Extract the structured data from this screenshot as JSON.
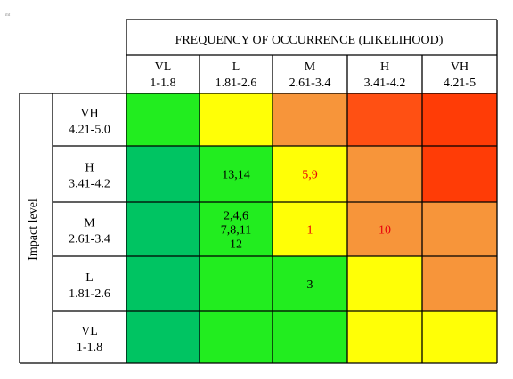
{
  "chart_data": {
    "type": "heatmap",
    "title": "FREQUENCY OF OCCURRENCE (LIKELIHOOD)",
    "ylabel": "Impact level",
    "columns": [
      {
        "code": "VL",
        "range": "1-1.8"
      },
      {
        "code": "L",
        "range": "1.81-2.6"
      },
      {
        "code": "M",
        "range": "2.61-3.4"
      },
      {
        "code": "H",
        "range": "3.41-4.2"
      },
      {
        "code": "VH",
        "range": "4.21-5"
      }
    ],
    "rows": [
      {
        "code": "VH",
        "range": "4.21-5.0"
      },
      {
        "code": "H",
        "range": "3.41-4.2"
      },
      {
        "code": "M",
        "range": "2.61-3.4"
      },
      {
        "code": "L",
        "range": "1.81-2.6"
      },
      {
        "code": "VL",
        "range": "1-1.8"
      }
    ],
    "colors": {
      "darkgreen": "#00c462",
      "green": "#22ed1f",
      "yellow": "#ffff06",
      "orange": "#f7953a",
      "redorange": "#ff5013",
      "red": "#ff3c06"
    },
    "cells": [
      [
        {
          "color": "green",
          "lines": []
        },
        {
          "color": "yellow",
          "lines": []
        },
        {
          "color": "orange",
          "lines": []
        },
        {
          "color": "redorange",
          "lines": []
        },
        {
          "color": "red",
          "lines": []
        }
      ],
      [
        {
          "color": "darkgreen",
          "lines": []
        },
        {
          "color": "green",
          "lines": [
            "13,14"
          ],
          "text_color": "black"
        },
        {
          "color": "yellow",
          "lines": [
            "5,9"
          ],
          "text_color": "red"
        },
        {
          "color": "orange",
          "lines": []
        },
        {
          "color": "red",
          "lines": []
        }
      ],
      [
        {
          "color": "darkgreen",
          "lines": []
        },
        {
          "color": "green",
          "lines": [
            "2,4,6",
            "7,8,11",
            "12"
          ],
          "text_color": "black"
        },
        {
          "color": "yellow",
          "lines": [
            "1"
          ],
          "text_color": "red"
        },
        {
          "color": "orange",
          "lines": [
            "10"
          ],
          "text_color": "red"
        },
        {
          "color": "orange",
          "lines": []
        }
      ],
      [
        {
          "color": "darkgreen",
          "lines": []
        },
        {
          "color": "green",
          "lines": []
        },
        {
          "color": "green",
          "lines": [
            "3"
          ],
          "text_color": "black"
        },
        {
          "color": "yellow",
          "lines": []
        },
        {
          "color": "orange",
          "lines": []
        }
      ],
      [
        {
          "color": "darkgreen",
          "lines": []
        },
        {
          "color": "green",
          "lines": []
        },
        {
          "color": "green",
          "lines": []
        },
        {
          "color": "yellow",
          "lines": []
        },
        {
          "color": "yellow",
          "lines": []
        }
      ]
    ]
  }
}
